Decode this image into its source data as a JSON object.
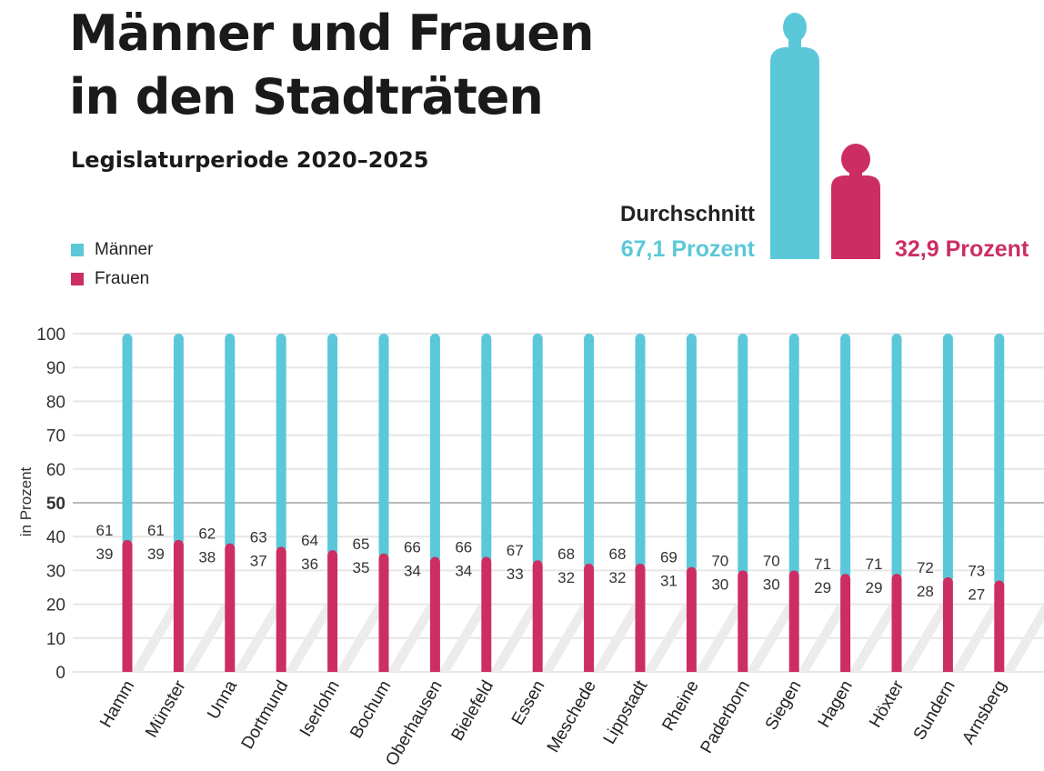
{
  "header": {
    "title_line1": "Männer und Frauen",
    "title_line2": "in den Stadträten",
    "subtitle": "Legislaturperiode 2020–2025"
  },
  "legend": {
    "men": "Männer",
    "women": "Frauen"
  },
  "average": {
    "label": "Durchschnitt",
    "men": "67,1 Prozent",
    "women": "32,9 Prozent",
    "men_value": 67.1,
    "women_value": 32.9
  },
  "colors": {
    "men": "#5bc8d9",
    "women": "#cc2e63"
  },
  "chart_data": {
    "type": "bar",
    "stacked": true,
    "ylabel": "in Prozent",
    "ylim": [
      0,
      100
    ],
    "yticks": [
      0,
      10,
      20,
      30,
      40,
      50,
      60,
      70,
      80,
      90,
      100
    ],
    "grid": true,
    "categories": [
      "Hamm",
      "Münster",
      "Unna",
      "Dortmund",
      "Iserlohn",
      "Bochum",
      "Oberhausen",
      "Bielefeld",
      "Essen",
      "Meschede",
      "Lippstadt",
      "Rheine",
      "Paderborn",
      "Siegen",
      "Hagen",
      "Höxter",
      "Sundern",
      "Arnsberg"
    ],
    "series": [
      {
        "name": "Frauen",
        "values": [
          39,
          39,
          38,
          37,
          36,
          35,
          34,
          34,
          33,
          32,
          32,
          31,
          30,
          30,
          29,
          29,
          28,
          27
        ]
      },
      {
        "name": "Männer",
        "values": [
          61,
          61,
          62,
          63,
          64,
          65,
          66,
          66,
          67,
          68,
          68,
          69,
          70,
          70,
          71,
          71,
          72,
          73
        ]
      }
    ],
    "legend_position": "top-left"
  }
}
